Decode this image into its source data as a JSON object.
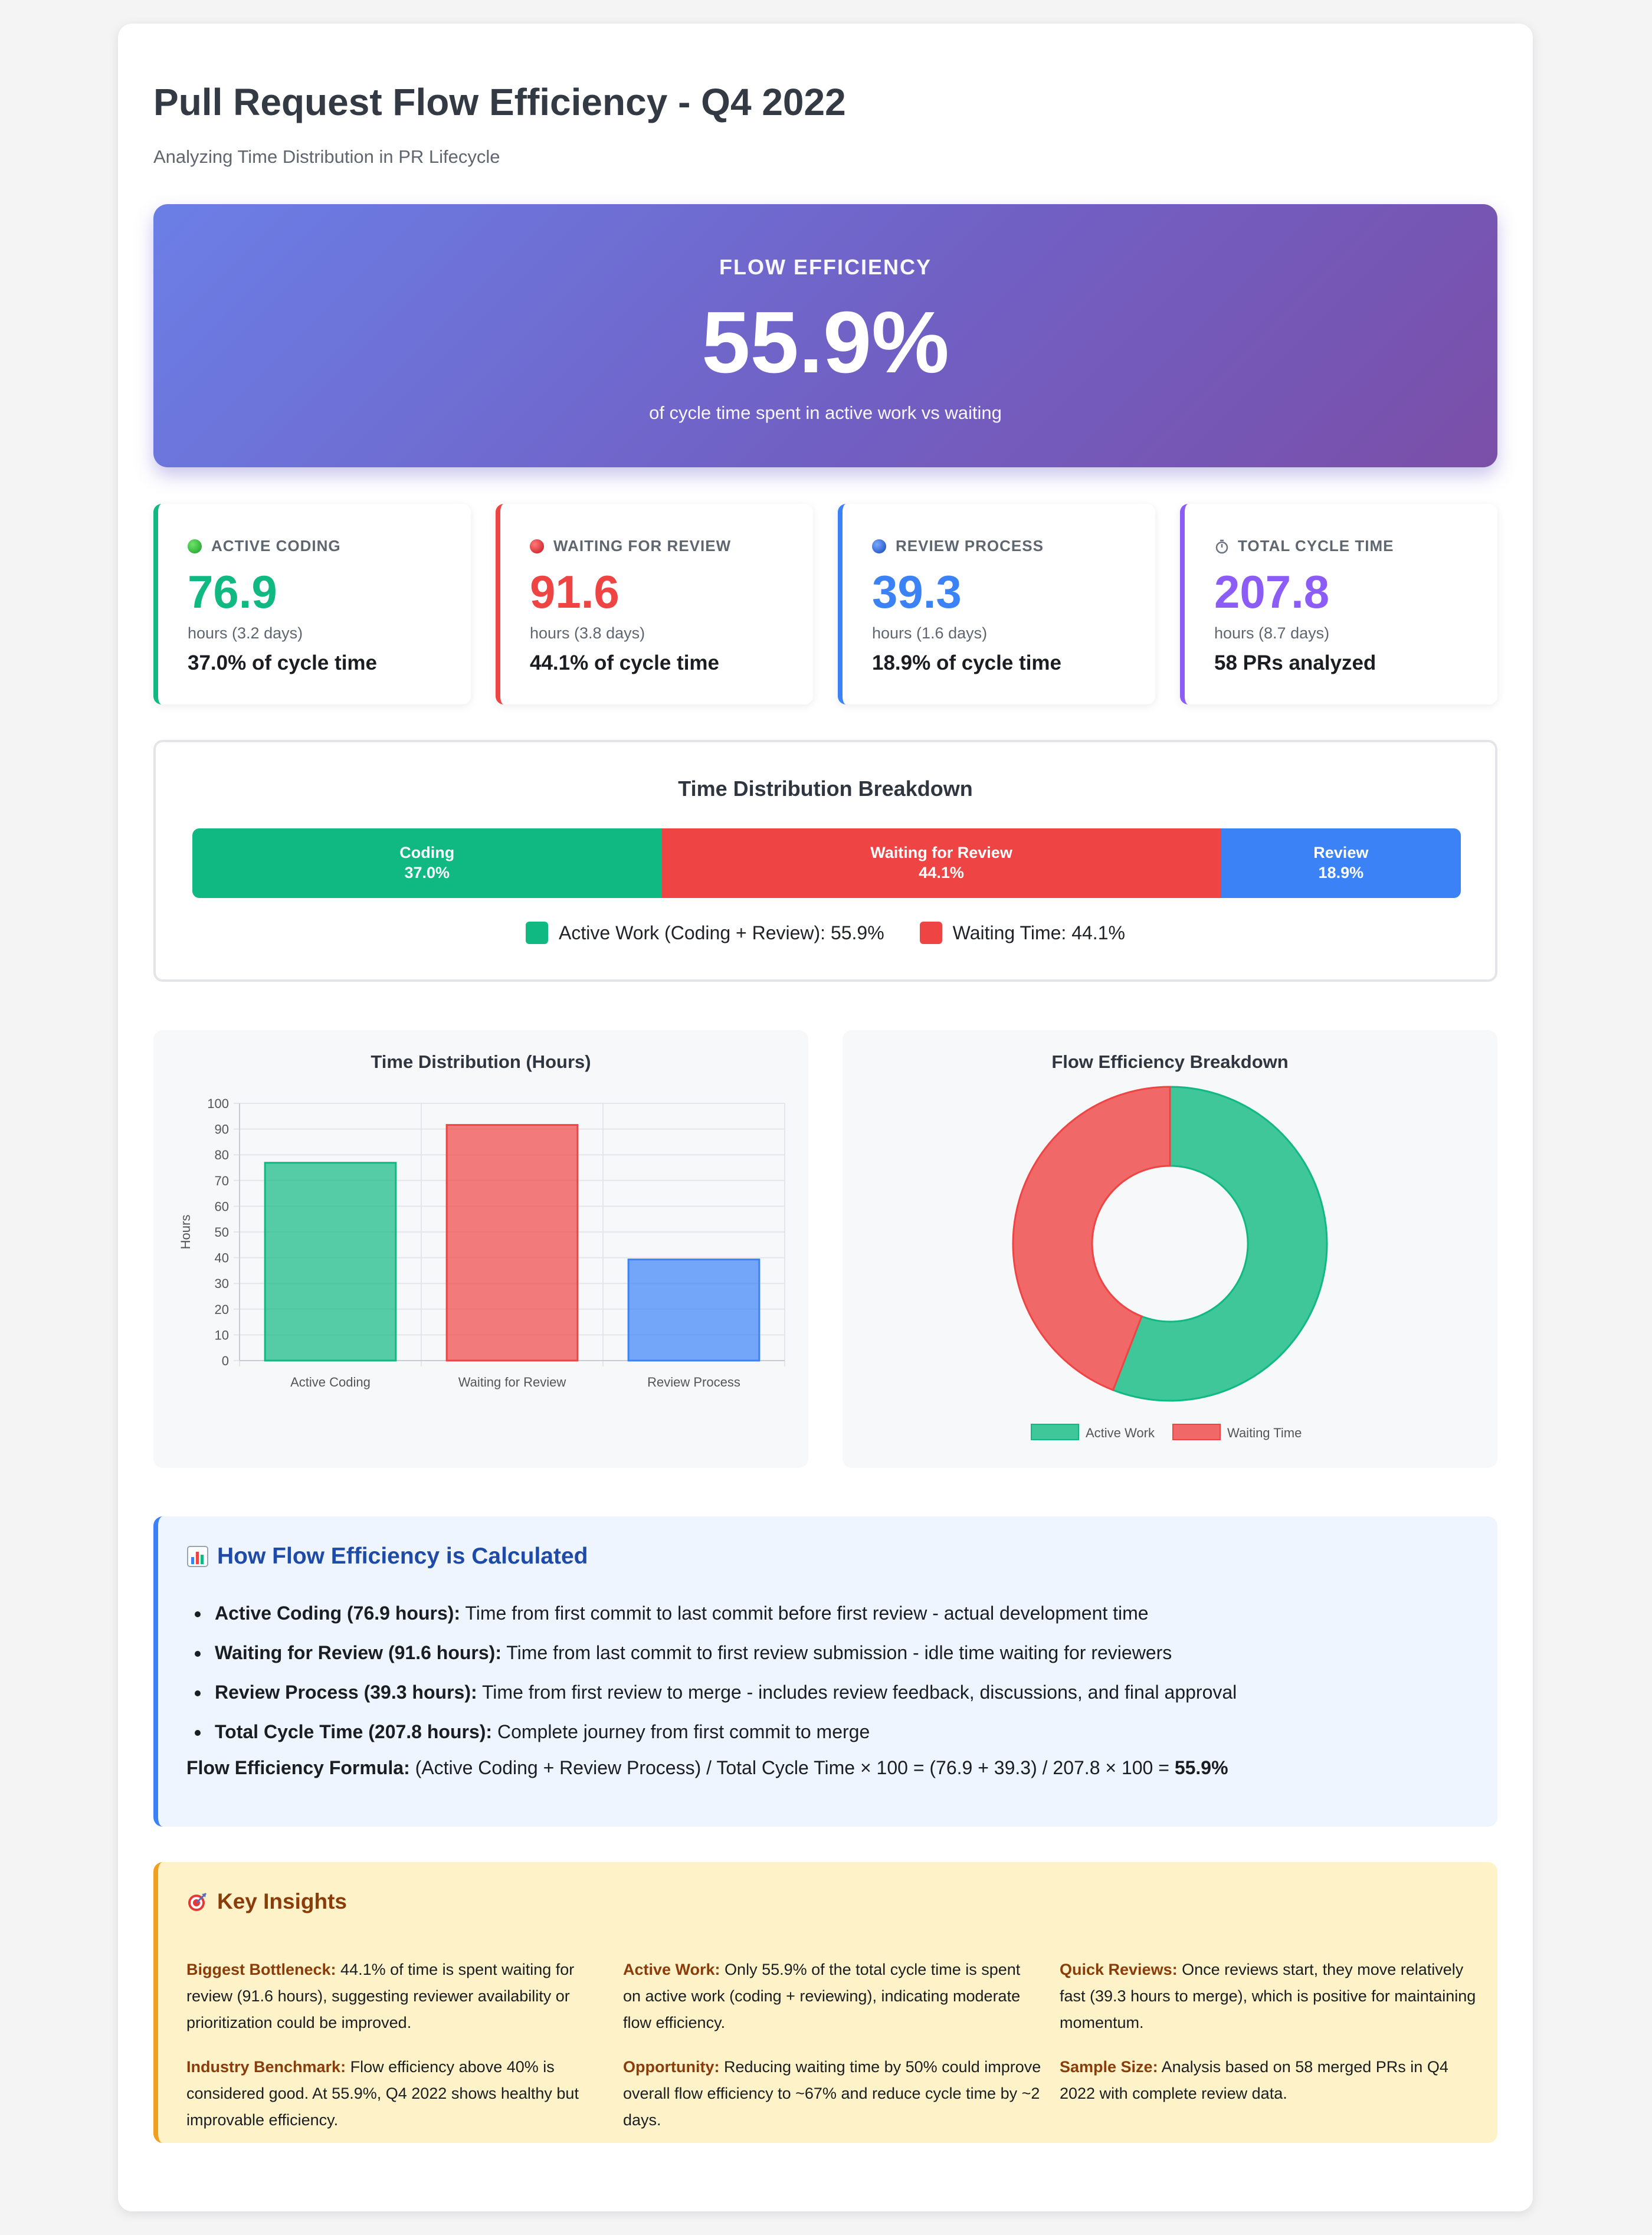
{
  "header": {
    "title": "Pull Request Flow Efficiency - Q4 2022",
    "subtitle": "Analyzing Time Distribution in PR Lifecycle"
  },
  "hero": {
    "label": "FLOW EFFICIENCY",
    "value": "55.9%",
    "description": "of cycle time spent in active work vs waiting"
  },
  "cards": [
    {
      "title": "ACTIVE CODING",
      "icon": "green-circle-icon",
      "value": "76.9",
      "hours": "hours (3.2 days)",
      "detail": "37.0% of cycle time",
      "color": "#10b981"
    },
    {
      "title": "WAITING FOR REVIEW",
      "icon": "red-circle-icon",
      "value": "91.6",
      "hours": "hours (3.8 days)",
      "detail": "44.1% of cycle time",
      "color": "#ef4444"
    },
    {
      "title": "REVIEW PROCESS",
      "icon": "blue-circle-icon",
      "value": "39.3",
      "hours": "hours (1.6 days)",
      "detail": "18.9% of cycle time",
      "color": "#3b82f6"
    },
    {
      "title": "TOTAL CYCLE TIME",
      "icon": "stopwatch-icon",
      "value": "207.8",
      "hours": "hours (8.7 days)",
      "detail": "58 PRs analyzed",
      "color": "#8b5cf6"
    }
  ],
  "distribution": {
    "title": "Time Distribution Breakdown",
    "segments": [
      {
        "label": "Coding",
        "pct_label": "37.0%",
        "percent": 37.0,
        "color": "#10b981"
      },
      {
        "label": "Waiting for Review",
        "pct_label": "44.1%",
        "percent": 44.1,
        "color": "#ef4444"
      },
      {
        "label": "Review",
        "pct_label": "18.9%",
        "percent": 18.9,
        "color": "#3b82f6"
      }
    ],
    "legend": [
      {
        "label": "Active Work (Coding + Review): 55.9%",
        "color": "#10b981"
      },
      {
        "label": "Waiting Time: 44.1%",
        "color": "#ef4444"
      }
    ]
  },
  "chart_data": [
    {
      "type": "bar",
      "title": "Time Distribution (Hours)",
      "categories": [
        "Active Coding",
        "Waiting for Review",
        "Review Process"
      ],
      "values": [
        76.9,
        91.6,
        39.3
      ],
      "colors": [
        "#10b981",
        "#ef4444",
        "#3b82f6"
      ],
      "xlabel": "",
      "ylabel": "Hours",
      "ylim": [
        0,
        100
      ],
      "yticks": [
        0,
        10,
        20,
        30,
        40,
        50,
        60,
        70,
        80,
        90,
        100
      ],
      "grid": true
    },
    {
      "type": "pie",
      "variant": "doughnut",
      "title": "Flow Efficiency Breakdown",
      "labels": [
        "Active Work",
        "Waiting Time"
      ],
      "values": [
        55.9,
        44.1
      ],
      "colors": [
        "#10b981",
        "#ef4444"
      ],
      "legend": "bottom"
    }
  ],
  "calculation": {
    "title": "How Flow Efficiency is Calculated",
    "icon": "bar-chart-icon",
    "items": [
      {
        "term": "Active Coding (76.9 hours):",
        "text": " Time from first commit to last commit before first review - actual development time"
      },
      {
        "term": "Waiting for Review (91.6 hours):",
        "text": " Time from last commit to first review submission - idle time waiting for reviewers"
      },
      {
        "term": "Review Process (39.3 hours):",
        "text": " Time from first review to merge - includes review feedback, discussions, and final approval"
      },
      {
        "term": "Total Cycle Time (207.8 hours):",
        "text": " Complete journey from first commit to merge"
      }
    ],
    "formula_label": "Flow Efficiency Formula:",
    "formula_text": " (Active Coding + Review Process) / Total Cycle Time × 100 = (76.9 + 39.3) / 207.8 × 100 = ",
    "formula_result": "55.9%"
  },
  "insights": {
    "title": "Key Insights",
    "icon": "target-icon",
    "items": [
      {
        "term": "Biggest Bottleneck:",
        "text": " 44.1% of time is spent waiting for review (91.6 hours), suggesting reviewer availability or prioritization could be improved."
      },
      {
        "term": "Active Work:",
        "text": " Only 55.9% of the total cycle time is spent on active work (coding + reviewing), indicating moderate flow efficiency."
      },
      {
        "term": "Quick Reviews:",
        "text": " Once reviews start, they move relatively fast (39.3 hours to merge), which is positive for maintaining momentum."
      },
      {
        "term": "Industry Benchmark:",
        "text": " Flow efficiency above 40% is considered good. At 55.9%, Q4 2022 shows healthy but improvable efficiency."
      },
      {
        "term": "Opportunity:",
        "text": " Reducing waiting time by 50% could improve overall flow efficiency to ~67% and reduce cycle time by ~2 days."
      },
      {
        "term": "Sample Size:",
        "text": " Analysis based on 58 merged PRs in Q4 2022 with complete review data."
      }
    ]
  }
}
